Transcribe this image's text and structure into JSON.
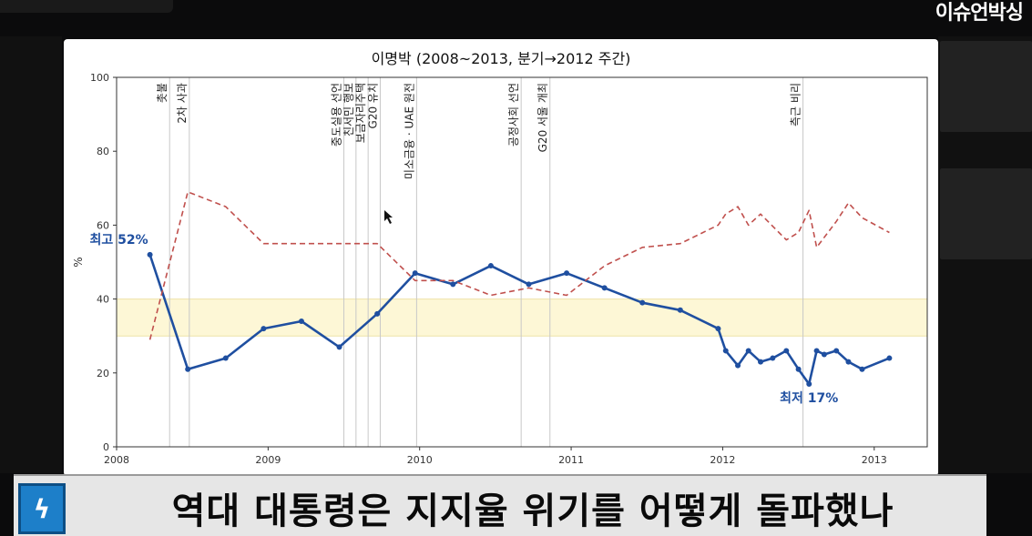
{
  "channel_logo": "이슈언박싱",
  "caption": "역대 대통령은 지지율 위기를 어떻게 돌파했나",
  "caption_icon": "lightning-icon",
  "chart_data": {
    "type": "line",
    "title": "이명박 (2008~2013, 분기→2012 주간)",
    "ylabel": "%",
    "xlim": [
      2008,
      2013.35
    ],
    "ylim": [
      0,
      100
    ],
    "yticks": [
      0,
      20,
      40,
      60,
      80,
      100
    ],
    "xticks": [
      2008,
      2009,
      2010,
      2011,
      2012,
      2013
    ],
    "band": {
      "from": 30,
      "to": 40,
      "color": "#fdf7d6"
    },
    "series": [
      {
        "color": "#1f4fa0",
        "style": "solid-markers",
        "x": [
          2008.22,
          2008.47,
          2008.72,
          2008.97,
          2009.22,
          2009.47,
          2009.72,
          2009.97,
          2010.22,
          2010.47,
          2010.72,
          2010.97,
          2011.22,
          2011.47,
          2011.72,
          2011.97,
          2012.02,
          2012.1,
          2012.17,
          2012.25,
          2012.33,
          2012.42,
          2012.5,
          2012.57,
          2012.62,
          2012.67,
          2012.75,
          2012.83,
          2012.92,
          2013.1
        ],
        "values": [
          52,
          21,
          24,
          32,
          34,
          27,
          36,
          47,
          44,
          49,
          44,
          47,
          43,
          39,
          37,
          32,
          26,
          22,
          26,
          23,
          24,
          26,
          21,
          17,
          26,
          25,
          26,
          23,
          21,
          24
        ]
      },
      {
        "color": "#c0504d",
        "style": "dashed",
        "x": [
          2008.22,
          2008.47,
          2008.72,
          2008.97,
          2009.22,
          2009.47,
          2009.72,
          2009.97,
          2010.22,
          2010.47,
          2010.72,
          2010.97,
          2011.22,
          2011.47,
          2011.72,
          2011.97,
          2012.02,
          2012.1,
          2012.17,
          2012.25,
          2012.42,
          2012.5,
          2012.57,
          2012.62,
          2012.75,
          2012.83,
          2012.92,
          2013.1
        ],
        "values": [
          29,
          69,
          65,
          55,
          55,
          55,
          55,
          45,
          45,
          41,
          43,
          41,
          49,
          54,
          55,
          60,
          63,
          65,
          60,
          63,
          56,
          58,
          64,
          54,
          61,
          66,
          62,
          58
        ]
      }
    ],
    "events": [
      {
        "x": 2008.35,
        "label": "촛불"
      },
      {
        "x": 2008.48,
        "label": "2차 사과"
      },
      {
        "x": 2009.5,
        "label": "중도실용 선언"
      },
      {
        "x": 2009.58,
        "label": "친서민 행보"
      },
      {
        "x": 2009.66,
        "label": "보금자리주택"
      },
      {
        "x": 2009.74,
        "label": "G20 유치"
      },
      {
        "x": 2009.98,
        "label": "미소금융 · UAE 원전"
      },
      {
        "x": 2010.67,
        "label": "공정사회 선언"
      },
      {
        "x": 2010.86,
        "label": "G20 서울 개최"
      },
      {
        "x": 2012.53,
        "label": "측근 비리"
      }
    ],
    "annotations": [
      {
        "label": "최고 52%"
      },
      {
        "label": "최저 17%"
      }
    ]
  }
}
